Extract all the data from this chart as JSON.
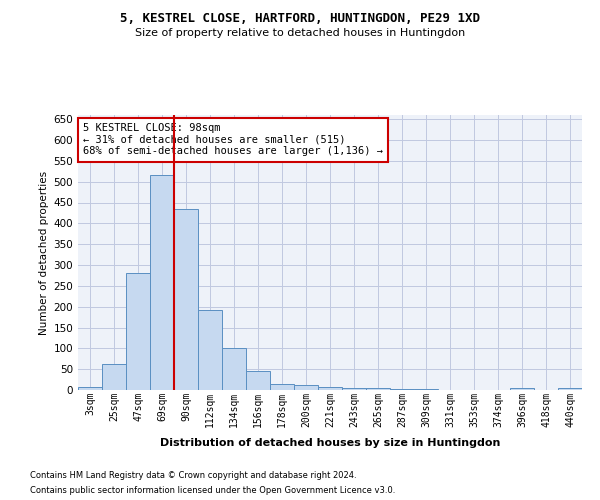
{
  "title1": "5, KESTREL CLOSE, HARTFORD, HUNTINGDON, PE29 1XD",
  "title2": "Size of property relative to detached houses in Huntingdon",
  "xlabel": "Distribution of detached houses by size in Huntingdon",
  "ylabel": "Number of detached properties",
  "footnote1": "Contains HM Land Registry data © Crown copyright and database right 2024.",
  "footnote2": "Contains public sector information licensed under the Open Government Licence v3.0.",
  "categories": [
    "3sqm",
    "25sqm",
    "47sqm",
    "69sqm",
    "90sqm",
    "112sqm",
    "134sqm",
    "156sqm",
    "178sqm",
    "200sqm",
    "221sqm",
    "243sqm",
    "265sqm",
    "287sqm",
    "309sqm",
    "331sqm",
    "353sqm",
    "374sqm",
    "396sqm",
    "418sqm",
    "440sqm"
  ],
  "values": [
    8,
    63,
    280,
    515,
    435,
    192,
    101,
    46,
    15,
    11,
    8,
    5,
    4,
    3,
    3,
    1,
    0,
    0,
    4,
    0,
    4
  ],
  "bar_color": "#c6d9f0",
  "bar_edge_color": "#5a8fc2",
  "grid_color": "#c0c8e0",
  "bg_color": "#eef2f9",
  "vline_color": "#cc0000",
  "annotation_line1": "5 KESTREL CLOSE: 98sqm",
  "annotation_line2": "← 31% of detached houses are smaller (515)",
  "annotation_line3": "68% of semi-detached houses are larger (1,136) →",
  "annotation_box_color": "#ffffff",
  "annotation_box_edge": "#cc0000",
  "ylim": [
    0,
    660
  ],
  "yticks": [
    0,
    50,
    100,
    150,
    200,
    250,
    300,
    350,
    400,
    450,
    500,
    550,
    600,
    650
  ]
}
